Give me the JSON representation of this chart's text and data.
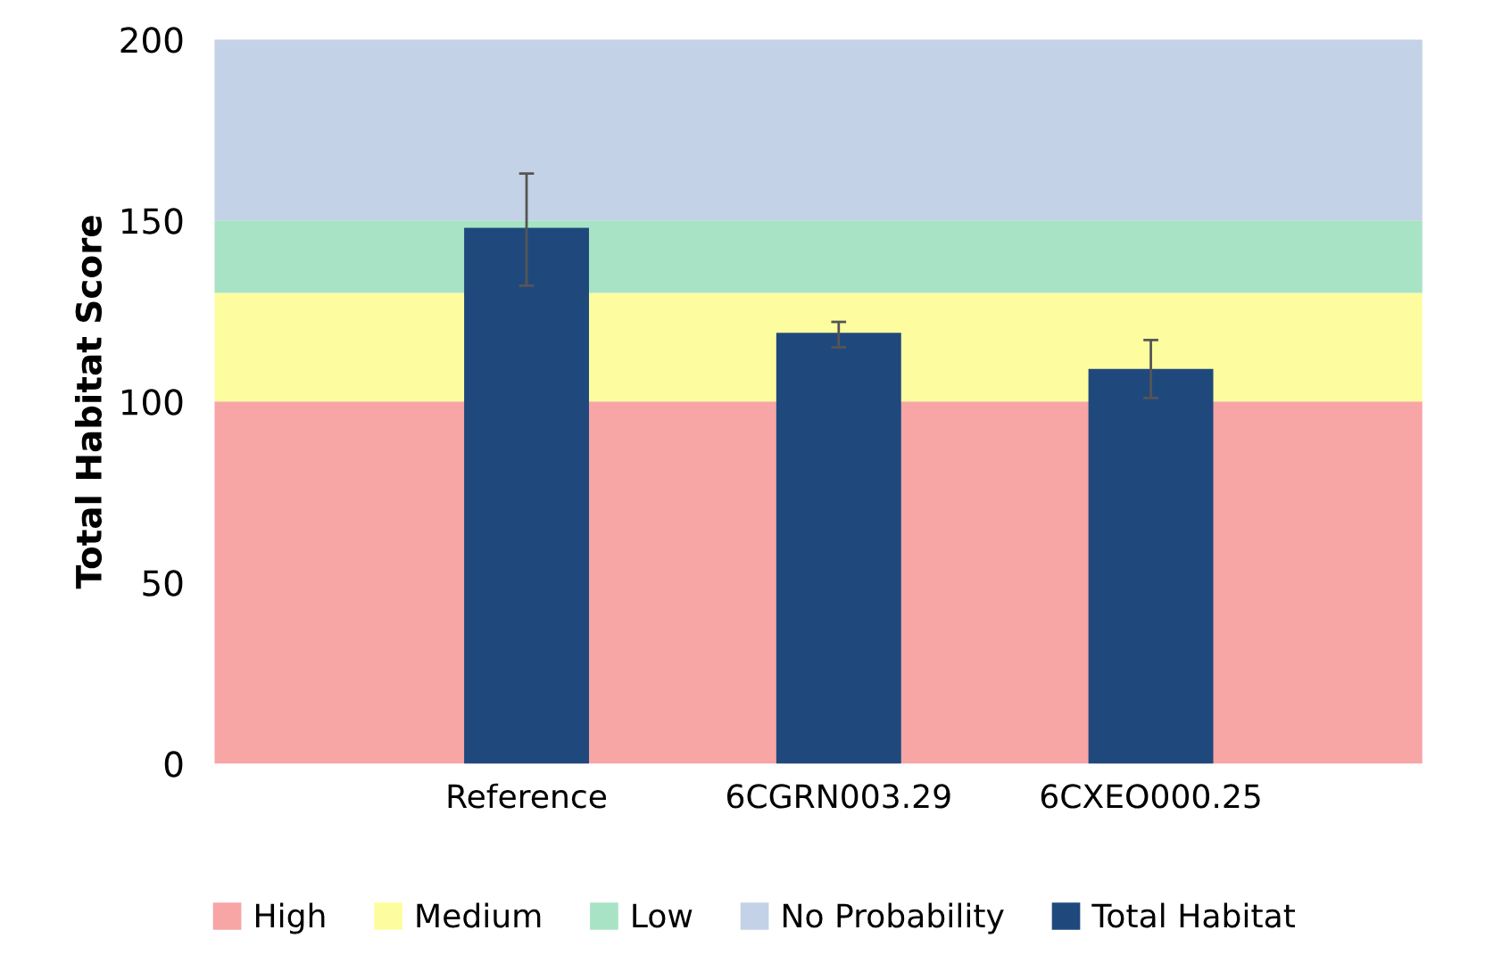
{
  "chart_data": {
    "type": "bar",
    "ylabel": "Total Habitat Score",
    "categories": [
      "Reference",
      "6CGRN003.29",
      "6CXEO000.25"
    ],
    "series": [
      {
        "name": "Total Habitat",
        "color": "#1f497d",
        "values": [
          148,
          119,
          109
        ],
        "errors": [
          [
            132,
            163
          ],
          [
            115,
            122
          ],
          [
            101,
            117
          ]
        ]
      }
    ],
    "ylim": [
      0,
      200
    ],
    "yticks": [
      0,
      50,
      100,
      150,
      200
    ],
    "bands": [
      {
        "axis": "y",
        "from": 0,
        "to": 100,
        "label": "High",
        "color": "#f7a5a5"
      },
      {
        "axis": "y",
        "from": 100,
        "to": 130,
        "label": "Medium",
        "color": "#fdfd9f"
      },
      {
        "axis": "y",
        "from": 130,
        "to": 150,
        "label": "Low",
        "color": "#a8e3c5"
      },
      {
        "axis": "y",
        "from": 150,
        "to": 200,
        "label": "No Probability",
        "color": "#c3d2e6"
      }
    ],
    "grid": false,
    "legend": "bottom"
  }
}
